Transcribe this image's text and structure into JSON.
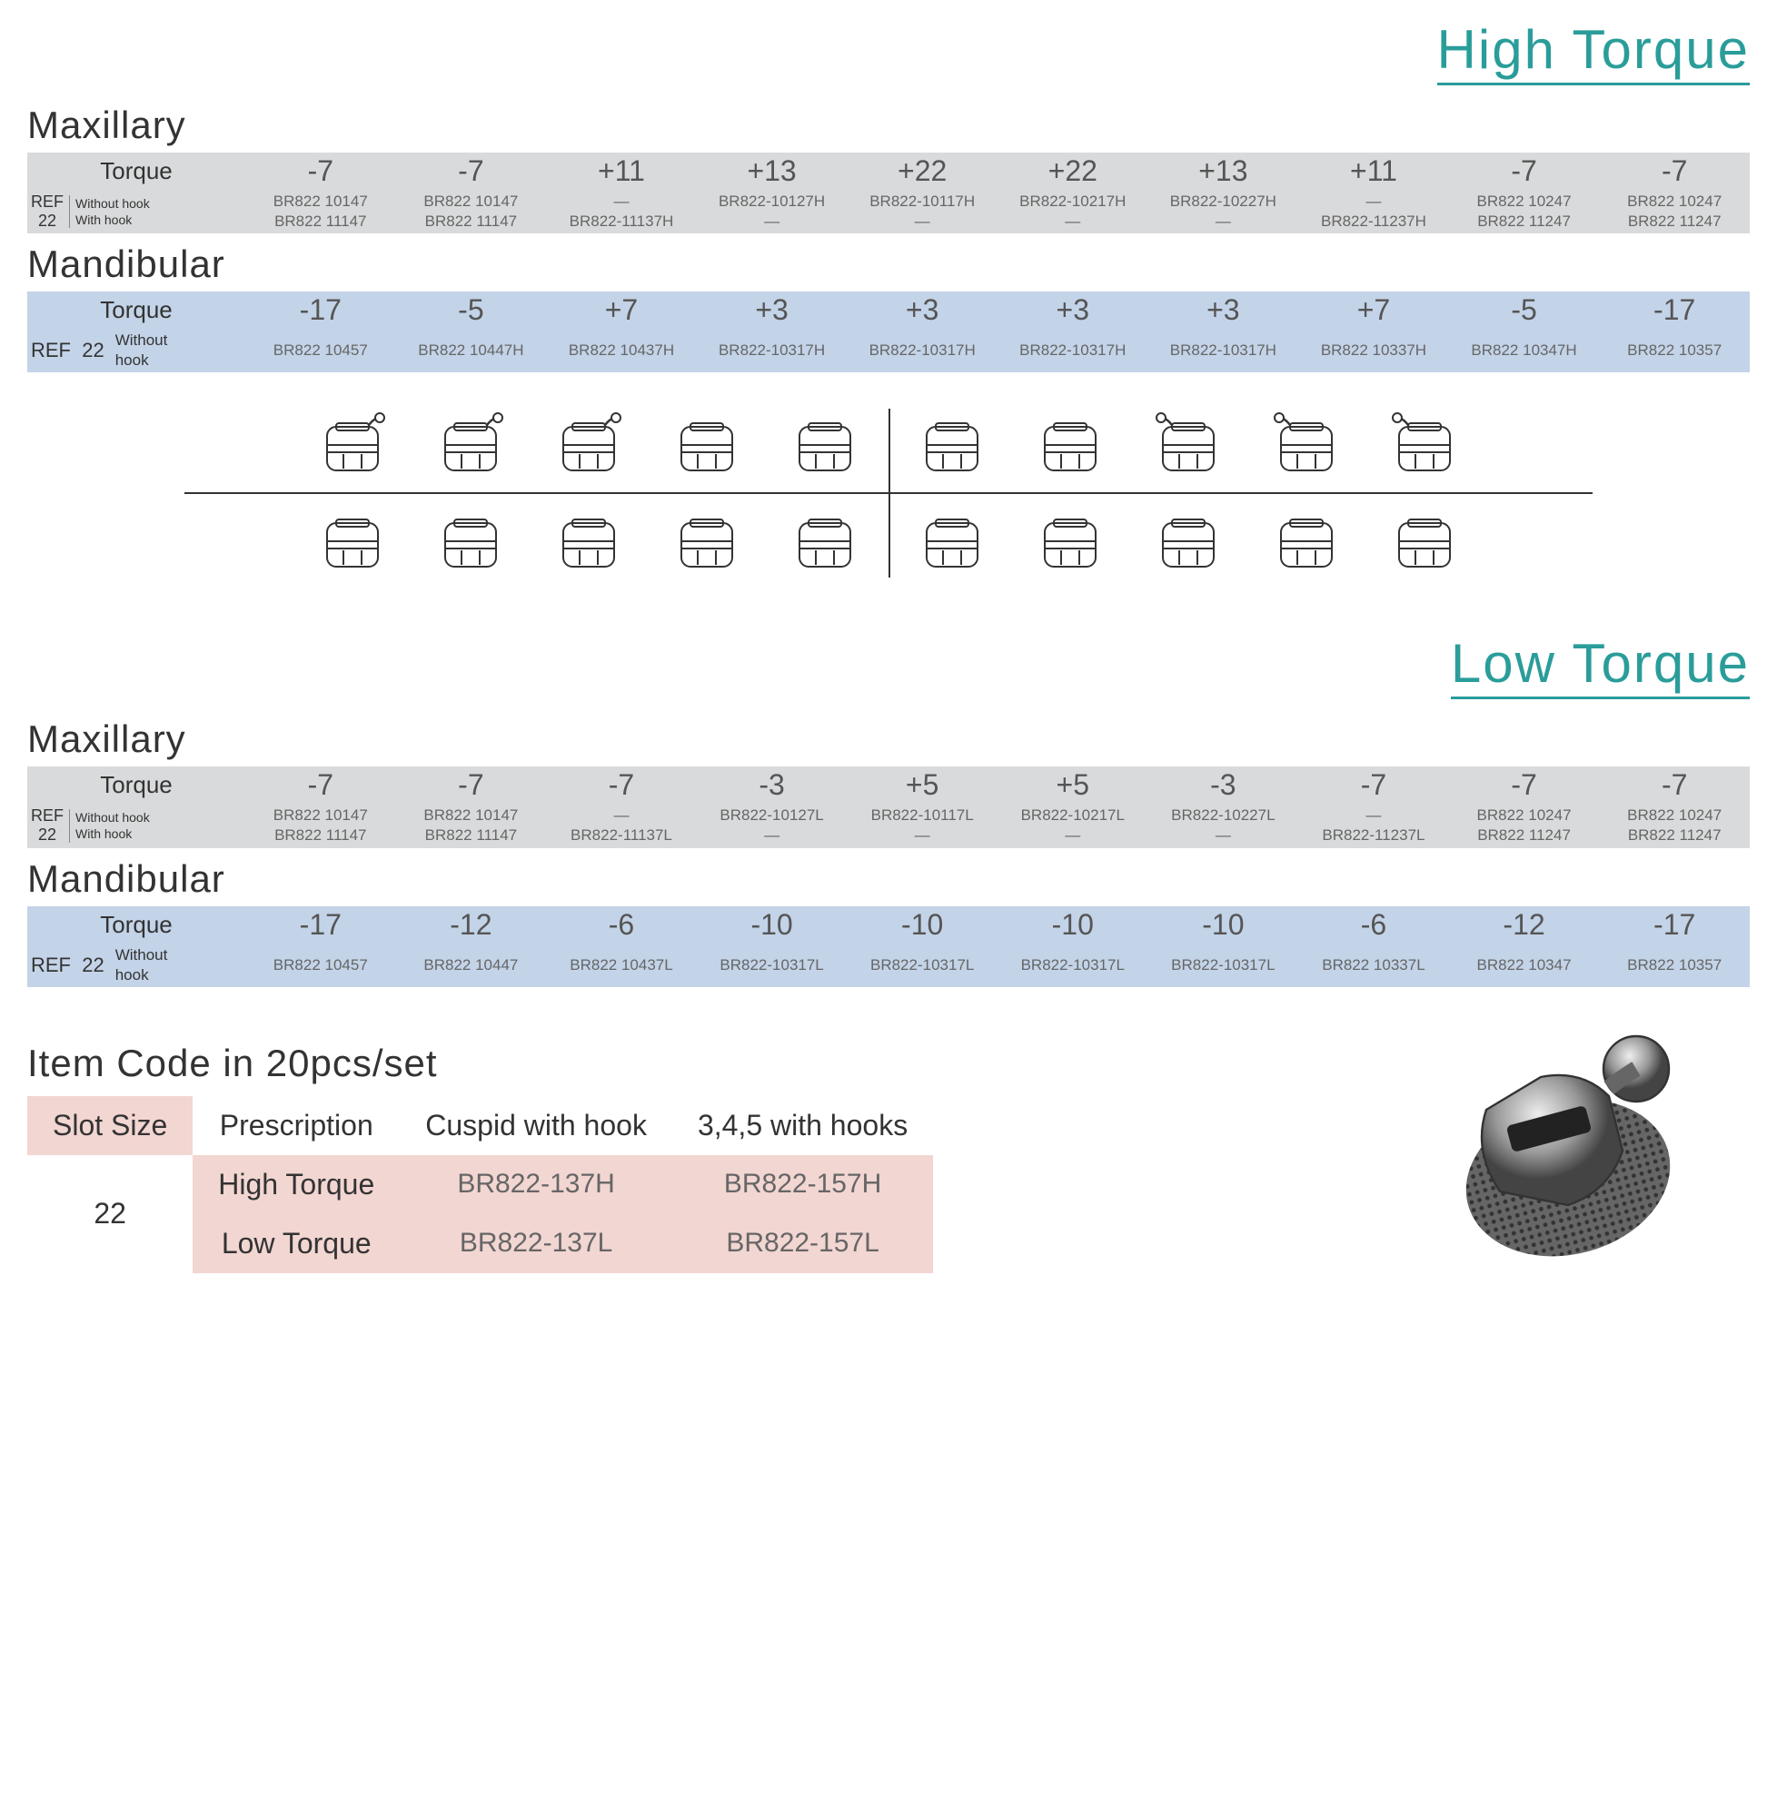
{
  "colors": {
    "accent": "#2a9d9a",
    "gray_row": "#d9dadb",
    "blue_row": "#c3d3e8",
    "pink_row": "#f2d6d2",
    "text": "#333333",
    "muted": "#666666"
  },
  "labels": {
    "high_torque": "High Torque",
    "low_torque": "Low Torque",
    "maxillary": "Maxillary",
    "mandibular": "Mandibular",
    "torque": "Torque",
    "ref": "REF",
    "ref_num": "22",
    "without_hook": "Without hook",
    "with_hook": "With hook",
    "item_code_title": "Item Code in 20pcs/set",
    "slot_size": "Slot Size",
    "prescription": "Prescription",
    "cuspid_hook": "Cuspid with hook",
    "hooks_345": "3,4,5 with hooks"
  },
  "high": {
    "maxillary": {
      "torque": [
        "-7",
        "-7",
        "+11",
        "+13",
        "+22",
        "+22",
        "+13",
        "+11",
        "-7",
        "-7"
      ],
      "without_hook": [
        "BR822  10147",
        "BR822  10147",
        "—",
        "BR822-10127H",
        "BR822-10117H",
        "BR822-10217H",
        "BR822-10227H",
        "—",
        "BR822  10247",
        "BR822  10247"
      ],
      "with_hook": [
        "BR822  11147",
        "BR822  11147",
        "BR822-11137H",
        "—",
        "—",
        "—",
        "—",
        "BR822-11237H",
        "BR822  11247",
        "BR822  11247"
      ]
    },
    "mandibular": {
      "torque": [
        "-17",
        "-5",
        "+7",
        "+3",
        "+3",
        "+3",
        "+3",
        "+7",
        "-5",
        "-17"
      ],
      "without_hook": [
        "BR822  10457",
        "BR822  10447H",
        "BR822  10437H",
        "BR822-10317H",
        "BR822-10317H",
        "BR822-10317H",
        "BR822-10317H",
        "BR822  10337H",
        "BR822  10347H",
        "BR822  10357"
      ]
    }
  },
  "low": {
    "maxillary": {
      "torque": [
        "-7",
        "-7",
        "-7",
        "-3",
        "+5",
        "+5",
        "-3",
        "-7",
        "-7",
        "-7"
      ],
      "without_hook": [
        "BR822  10147",
        "BR822  10147",
        "—",
        "BR822-10127L",
        "BR822-10117L",
        "BR822-10217L",
        "BR822-10227L",
        "—",
        "BR822  10247",
        "BR822  10247"
      ],
      "with_hook": [
        "BR822  11147",
        "BR822  11147",
        "BR822-11137L",
        "—",
        "—",
        "—",
        "—",
        "BR822-11237L",
        "BR822  11247",
        "BR822  11247"
      ]
    },
    "mandibular": {
      "torque": [
        "-17",
        "-12",
        "-6",
        "-10",
        "-10",
        "-10",
        "-10",
        "-6",
        "-12",
        "-17"
      ],
      "without_hook": [
        "BR822  10457",
        "BR822  10447",
        "BR822  10437L",
        "BR822-10317L",
        "BR822-10317L",
        "BR822-10317L",
        "BR822-10317L",
        "BR822  10337L",
        "BR822  10347",
        "BR822  10357"
      ]
    }
  },
  "item_code": {
    "slot": "22",
    "rows": [
      {
        "prescription": "High Torque",
        "cuspid": "BR822-137H",
        "hooks": "BR822-157H"
      },
      {
        "prescription": "Low Torque",
        "cuspid": "BR822-137L",
        "hooks": "BR822-157L"
      }
    ]
  }
}
